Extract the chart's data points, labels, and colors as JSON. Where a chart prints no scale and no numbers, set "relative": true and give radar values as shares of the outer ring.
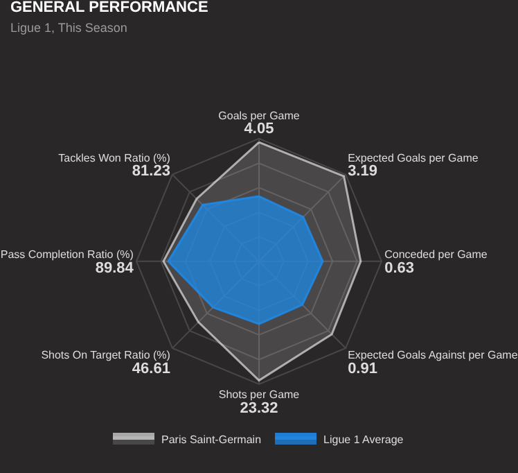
{
  "chart_data": {
    "type": "radar",
    "title": "GENERAL PERFORMANCE",
    "subtitle": "Ligue 1, This Season",
    "categories": [
      "Goals per Game",
      "Expected Goals per Game",
      "Conceded per Game",
      "Expected Goals Against per Game",
      "Shots per Game",
      "Shots On Target Ratio (%)",
      "Pass Completion Ratio (%)",
      "Tackles Won Ratio (%)"
    ],
    "annotations": [
      "4.05",
      "3.19",
      "0.63",
      "0.91",
      "23.32",
      "46.61",
      "89.84",
      "81.23"
    ],
    "relative": true,
    "grid": true,
    "legend": "bottom",
    "series": [
      {
        "name": "Paris Saint-Germain",
        "color": "#ffffff",
        "values": [
          0.97,
          0.98,
          0.83,
          0.84,
          0.97,
          0.7,
          0.78,
          0.72
        ]
      },
      {
        "name": "Ligue 1 Average",
        "color": "#1e88e5",
        "values": [
          0.53,
          0.51,
          0.52,
          0.5,
          0.51,
          0.53,
          0.74,
          0.65
        ]
      }
    ]
  }
}
